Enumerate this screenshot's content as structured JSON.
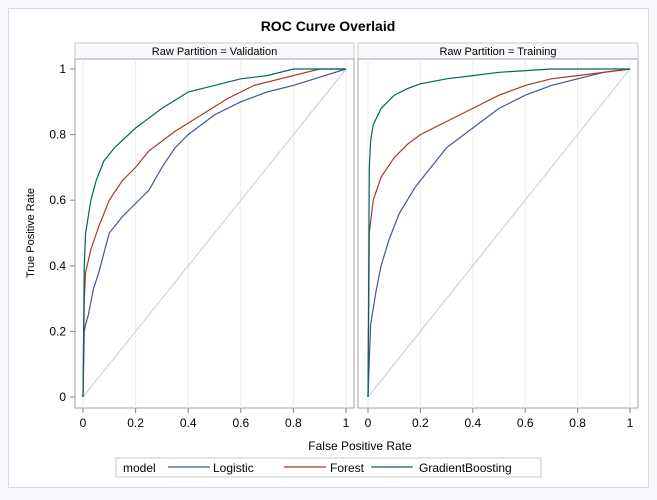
{
  "chart_data": {
    "type": "line",
    "title": "ROC Curve Overlaid",
    "xlabel": "False Positive Rate",
    "ylabel": "True Positive Rate",
    "xlim": [
      0,
      1
    ],
    "ylim": [
      0,
      1
    ],
    "xticks": [
      "0",
      "0.2",
      "0.4",
      "0.6",
      "0.8",
      "1"
    ],
    "yticks": [
      "0",
      "0.2",
      "0.4",
      "0.6",
      "0.8",
      "1"
    ],
    "grid": "vertical",
    "reference_line": "diagonal",
    "legend": {
      "title": "model",
      "position": "bottom",
      "entries": [
        "Logistic",
        "Forest",
        "GradientBoosting"
      ]
    },
    "colors": {
      "Logistic": "#445694",
      "Forest": "#a23a2e",
      "GradientBoosting": "#01665e",
      "reference": "#c3c7e4"
    },
    "panels": [
      {
        "label": "Raw Partition = Validation",
        "series": [
          {
            "name": "Logistic",
            "x": [
              0,
              0.005,
              0.01,
              0.02,
              0.04,
              0.06,
              0.08,
              0.1,
              0.15,
              0.2,
              0.25,
              0.3,
              0.35,
              0.4,
              0.5,
              0.6,
              0.7,
              0.8,
              0.9,
              1
            ],
            "y": [
              0,
              0.2,
              0.22,
              0.25,
              0.33,
              0.38,
              0.44,
              0.5,
              0.55,
              0.59,
              0.63,
              0.7,
              0.76,
              0.8,
              0.86,
              0.9,
              0.93,
              0.95,
              0.975,
              1
            ]
          },
          {
            "name": "Forest",
            "x": [
              0,
              0.005,
              0.01,
              0.03,
              0.06,
              0.1,
              0.15,
              0.2,
              0.25,
              0.35,
              0.45,
              0.55,
              0.65,
              0.8,
              0.9,
              1
            ],
            "y": [
              0,
              0.3,
              0.38,
              0.45,
              0.52,
              0.6,
              0.66,
              0.7,
              0.75,
              0.81,
              0.86,
              0.91,
              0.95,
              0.98,
              1,
              1
            ]
          },
          {
            "name": "GradientBoosting",
            "x": [
              0,
              0.005,
              0.01,
              0.03,
              0.05,
              0.08,
              0.12,
              0.2,
              0.25,
              0.3,
              0.4,
              0.5,
              0.6,
              0.7,
              0.8,
              1
            ],
            "y": [
              0,
              0.4,
              0.5,
              0.6,
              0.66,
              0.72,
              0.76,
              0.82,
              0.85,
              0.88,
              0.93,
              0.95,
              0.97,
              0.98,
              1,
              1
            ]
          }
        ]
      },
      {
        "label": "Raw Partition = Training",
        "series": [
          {
            "name": "Logistic",
            "x": [
              0,
              0.01,
              0.03,
              0.05,
              0.08,
              0.12,
              0.18,
              0.25,
              0.3,
              0.4,
              0.5,
              0.6,
              0.7,
              0.8,
              0.9,
              1
            ],
            "y": [
              0,
              0.22,
              0.32,
              0.4,
              0.48,
              0.56,
              0.64,
              0.71,
              0.76,
              0.82,
              0.88,
              0.92,
              0.95,
              0.97,
              0.99,
              1
            ]
          },
          {
            "name": "Forest",
            "x": [
              0,
              0.005,
              0.02,
              0.05,
              0.1,
              0.15,
              0.2,
              0.3,
              0.4,
              0.5,
              0.6,
              0.7,
              0.8,
              1
            ],
            "y": [
              0,
              0.5,
              0.6,
              0.67,
              0.73,
              0.77,
              0.8,
              0.84,
              0.88,
              0.92,
              0.95,
              0.97,
              0.98,
              1
            ]
          },
          {
            "name": "GradientBoosting",
            "x": [
              0,
              0.005,
              0.01,
              0.02,
              0.05,
              0.1,
              0.15,
              0.2,
              0.3,
              0.4,
              0.5,
              0.7,
              1
            ],
            "y": [
              0,
              0.7,
              0.78,
              0.83,
              0.88,
              0.92,
              0.94,
              0.955,
              0.97,
              0.98,
              0.99,
              1,
              1
            ]
          }
        ]
      }
    ]
  }
}
